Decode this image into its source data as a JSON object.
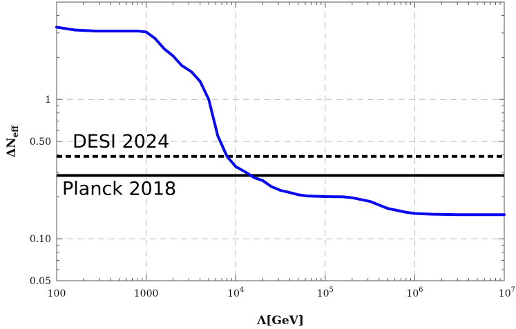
{
  "chart_data": {
    "type": "line",
    "xlabel": "Λ[GeV]",
    "ylabel": "ΔN",
    "ylabel_sub": "eff",
    "xscale": "log",
    "yscale": "log",
    "xlim": [
      100,
      10000000
    ],
    "ylim": [
      0.05,
      5.0
    ],
    "grid": true,
    "x_ticks": [
      {
        "value": 100,
        "base": "100",
        "exp": ""
      },
      {
        "value": 1000,
        "base": "1000",
        "exp": ""
      },
      {
        "value": 10000,
        "base": "10",
        "exp": "4"
      },
      {
        "value": 100000,
        "base": "10",
        "exp": "5"
      },
      {
        "value": 1000000,
        "base": "10",
        "exp": "6"
      },
      {
        "value": 10000000,
        "base": "10",
        "exp": "7"
      }
    ],
    "y_ticks": [
      {
        "value": 0.05,
        "label": "0.05"
      },
      {
        "value": 0.1,
        "label": "0.10"
      },
      {
        "value": 0.5,
        "label": "0.50"
      },
      {
        "value": 1,
        "label": "1"
      }
    ],
    "series": [
      {
        "color": "#0a0aee",
        "x": [
          100,
          160,
          270,
          500,
          800,
          1000,
          1250,
          1600,
          2000,
          2500,
          3200,
          4000,
          5000,
          6300,
          8000,
          10000,
          13000,
          16000,
          20000,
          25000,
          32000,
          40000,
          50000,
          63000,
          100000,
          160000,
          200000,
          320000,
          500000,
          800000,
          1000000,
          1600000,
          3000000,
          10000000
        ],
        "y": [
          3.3,
          3.15,
          3.1,
          3.1,
          3.1,
          3.05,
          2.75,
          2.3,
          2.05,
          1.75,
          1.58,
          1.35,
          1.0,
          0.55,
          0.39,
          0.33,
          0.3,
          0.275,
          0.262,
          0.237,
          0.222,
          0.215,
          0.207,
          0.203,
          0.201,
          0.2,
          0.197,
          0.185,
          0.165,
          0.155,
          0.152,
          0.15,
          0.149,
          0.149
        ]
      }
    ],
    "reference_lines": [
      {
        "label": "DESI 2024",
        "y": 0.39,
        "style": "dashed",
        "color": "#000000"
      },
      {
        "label": "Planck 2018",
        "y": 0.285,
        "style": "solid",
        "color": "#000000"
      }
    ]
  }
}
